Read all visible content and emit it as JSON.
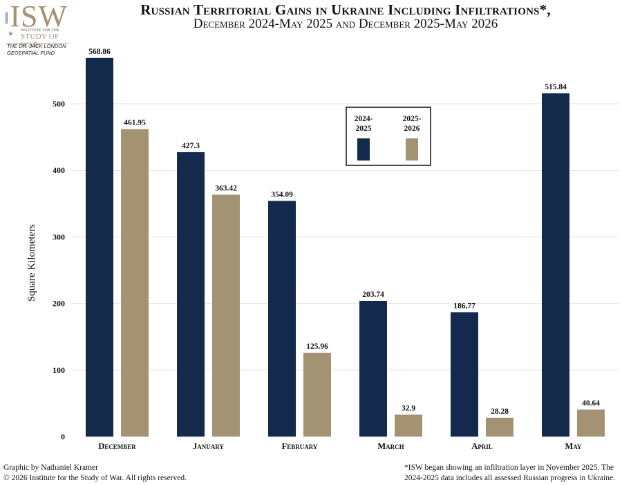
{
  "logo": {
    "letters": "ISW",
    "small_text": "INSTITUTE FOR THE",
    "study_text": "STUDY OF WAR",
    "fund_line1": "THE DR. JACK LONDON",
    "fund_line2": "GEOSPATIAL FUND"
  },
  "header": {
    "title": "Russian Territorial Gains in Ukraine Including Infiltrations*,",
    "subtitle": "December 2024-May 2025 and December 2025-May 2026"
  },
  "chart_data": {
    "type": "bar",
    "categories": [
      "December",
      "January",
      "February",
      "March",
      "April",
      "May"
    ],
    "series": [
      {
        "name": "2024-2025",
        "name_lines": [
          "2024-",
          "2025"
        ],
        "color": "#132a4c",
        "values": [
          568.86,
          427.3,
          354.09,
          203.74,
          186.77,
          515.84
        ]
      },
      {
        "name": "2025-2026",
        "name_lines": [
          "2025-",
          "2026"
        ],
        "color": "#a39373",
        "values": [
          461.95,
          363.42,
          125.96,
          32.9,
          28.28,
          40.64
        ]
      }
    ],
    "data_labels": [
      [
        "568.86",
        "427.3",
        "354.09",
        "203.74",
        "186.77",
        "515.84"
      ],
      [
        "461.95",
        "363.42",
        "125.96",
        "32.9",
        "28.28",
        "40.64"
      ]
    ],
    "ylabel": "Square Kilometers",
    "ylim": [
      0,
      575
    ],
    "yticks": [
      0,
      100,
      200,
      300,
      400,
      500
    ],
    "grid": true,
    "legend_position": "top-center"
  },
  "footer": {
    "credit": "Graphic by Nathaniel Kramer",
    "copyright": "© 2026 Institute for the Study of War. All rights reserved.",
    "note_line1": "*ISW began showing an infiltration layer in November 2025.  The",
    "note_line2": "2024-2025 data includes all assessed Russian progress in Ukraine."
  }
}
